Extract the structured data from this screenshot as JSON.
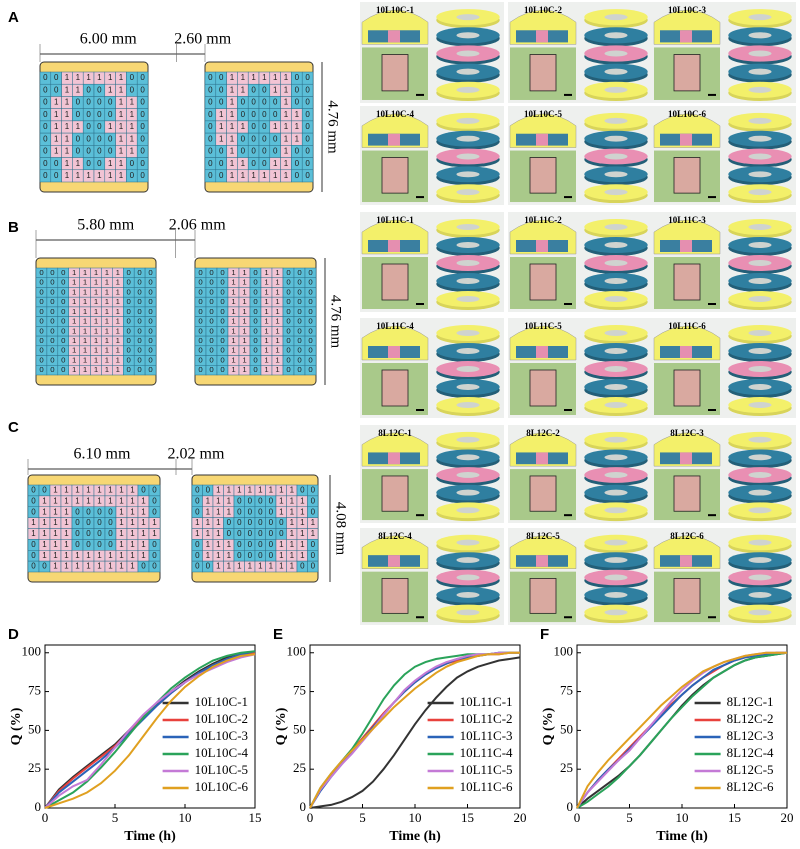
{
  "panels": [
    {
      "label": "A",
      "width": "6.00 mm",
      "gap": "2.60 mm",
      "height": "4.76 mm",
      "grids": [
        [
          "0011111100",
          "0011001100",
          "0110000110",
          "0110000110",
          "0111001110",
          "0110000110",
          "0110000110",
          "0011001100",
          "0011111100"
        ],
        [
          "0011111100",
          "0011001100",
          "0010000100",
          "0110000110",
          "0111001110",
          "0110000110",
          "0010000100",
          "0011001100",
          "0011111100"
        ]
      ],
      "tiles": [
        "10L10C-1",
        "10L10C-2",
        "10L10C-3",
        "10L10C-4",
        "10L10C-5",
        "10L10C-6"
      ]
    },
    {
      "label": "B",
      "width": "5.80 mm",
      "gap": "2.06 mm",
      "height": "4.76 mm",
      "grids": [
        [
          "00011111000",
          "00011111000",
          "00011111000",
          "00011111000",
          "00011111000",
          "00011111000",
          "00011111000",
          "00011111000",
          "00011111000",
          "00011111000",
          "00011111000"
        ],
        [
          "00011011000",
          "00011011000",
          "00011011000",
          "00011011000",
          "00011011000",
          "00011011000",
          "00011011000",
          "00011011000",
          "00011011000",
          "00011011000",
          "00011011000"
        ]
      ],
      "tiles": [
        "10L11C-1",
        "10L11C-2",
        "10L11C-3",
        "10L11C-4",
        "10L11C-5",
        "10L11C-6"
      ]
    },
    {
      "label": "C",
      "width": "6.10 mm",
      "gap": "2.02 mm",
      "height": "4.08 mm",
      "grids": [
        [
          "001111111100",
          "011111111110",
          "011100001110",
          "111100001111",
          "111100001111",
          "011100001110",
          "011111111110",
          "001111111100"
        ],
        [
          "001111111100",
          "011100001110",
          "011100001110",
          "111000000111",
          "111000000111",
          "011100001110",
          "011100001110",
          "001111111100"
        ]
      ],
      "tiles": [
        "8L12C-1",
        "8L12C-2",
        "8L12C-3",
        "8L12C-4",
        "8L12C-5",
        "8L12C-6"
      ]
    }
  ],
  "chart_data": [
    {
      "type": "line",
      "panel": "D",
      "xlabel": "Time (h)",
      "ylabel": "Q (%)",
      "xlim": [
        0,
        15
      ],
      "ylim": [
        0,
        105
      ],
      "xticks": [
        0,
        5,
        10,
        15
      ],
      "yticks": [
        0,
        25,
        50,
        75,
        100
      ],
      "x": [
        0,
        1,
        2,
        3,
        4,
        5,
        6,
        7,
        8,
        9,
        10,
        11,
        12,
        13,
        14,
        15
      ],
      "series": [
        {
          "name": "10L10C-1",
          "color": "#333333",
          "values": [
            0,
            12,
            20,
            27,
            34,
            41,
            50,
            59,
            67,
            75,
            82,
            88,
            93,
            97,
            99,
            100
          ]
        },
        {
          "name": "10L10C-2",
          "color": "#e8413c",
          "values": [
            0,
            11,
            19,
            26,
            33,
            40,
            49,
            58,
            66,
            74,
            81,
            87,
            92,
            96,
            99,
            100
          ]
        },
        {
          "name": "10L10C-3",
          "color": "#2a63b8",
          "values": [
            0,
            10,
            17,
            24,
            31,
            39,
            48,
            57,
            66,
            74,
            81,
            87,
            92,
            96,
            99,
            101
          ]
        },
        {
          "name": "10L10C-4",
          "color": "#2aa35a",
          "values": [
            0,
            5,
            10,
            17,
            26,
            36,
            47,
            58,
            68,
            77,
            84,
            90,
            95,
            98,
            100,
            101
          ]
        },
        {
          "name": "10L10C-5",
          "color": "#c47ad6",
          "values": [
            0,
            8,
            14,
            18,
            28,
            39,
            50,
            60,
            68,
            75,
            81,
            86,
            90,
            94,
            97,
            99
          ]
        },
        {
          "name": "10L10C-6",
          "color": "#e0a020",
          "values": [
            0,
            3,
            6,
            10,
            16,
            24,
            34,
            46,
            58,
            69,
            78,
            85,
            91,
            95,
            98,
            99
          ]
        }
      ]
    },
    {
      "type": "line",
      "panel": "E",
      "xlabel": "Time (h)",
      "ylabel": "Q (%)",
      "xlim": [
        0,
        20
      ],
      "ylim": [
        0,
        105
      ],
      "xticks": [
        0,
        5,
        10,
        15,
        20
      ],
      "yticks": [
        0,
        25,
        50,
        75,
        100
      ],
      "x": [
        0,
        1,
        2,
        3,
        4,
        5,
        6,
        7,
        8,
        9,
        10,
        11,
        12,
        13,
        14,
        15,
        16,
        17,
        18,
        19,
        20
      ],
      "series": [
        {
          "name": "10L11C-1",
          "color": "#333333",
          "values": [
            0,
            1,
            2,
            4,
            7,
            11,
            17,
            25,
            34,
            44,
            54,
            63,
            71,
            78,
            84,
            88,
            91,
            93,
            95,
            96,
            97
          ]
        },
        {
          "name": "10L11C-2",
          "color": "#e8413c",
          "values": [
            0,
            12,
            21,
            29,
            37,
            45,
            53,
            61,
            68,
            75,
            81,
            86,
            90,
            93,
            95,
            97,
            98,
            99,
            99,
            100,
            100
          ]
        },
        {
          "name": "10L11C-3",
          "color": "#2a63b8",
          "values": [
            0,
            11,
            20,
            28,
            36,
            44,
            52,
            60,
            68,
            75,
            81,
            86,
            90,
            93,
            96,
            97,
            98,
            99,
            100,
            100,
            100
          ]
        },
        {
          "name": "10L11C-4",
          "color": "#2aa35a",
          "values": [
            0,
            13,
            22,
            30,
            38,
            48,
            59,
            70,
            79,
            86,
            91,
            94,
            96,
            97,
            98,
            99,
            99,
            99,
            100,
            100,
            100
          ]
        },
        {
          "name": "10L11C-5",
          "color": "#c47ad6",
          "values": [
            0,
            12,
            20,
            28,
            35,
            43,
            51,
            60,
            68,
            76,
            82,
            87,
            91,
            94,
            96,
            98,
            99,
            99,
            100,
            100,
            100
          ]
        },
        {
          "name": "10L11C-6",
          "color": "#e0a020",
          "values": [
            0,
            13,
            22,
            30,
            37,
            44,
            51,
            58,
            65,
            71,
            77,
            82,
            87,
            91,
            94,
            96,
            98,
            99,
            99,
            100,
            100
          ]
        }
      ]
    },
    {
      "type": "line",
      "panel": "F",
      "xlabel": "Time (h)",
      "ylabel": "Q (%)",
      "xlim": [
        0,
        20
      ],
      "ylim": [
        0,
        105
      ],
      "xticks": [
        0,
        5,
        10,
        15,
        20
      ],
      "yticks": [
        0,
        25,
        50,
        75,
        100
      ],
      "x": [
        0,
        1,
        2,
        3,
        4,
        5,
        6,
        7,
        8,
        9,
        10,
        11,
        12,
        13,
        14,
        15,
        16,
        17,
        18,
        19,
        20
      ],
      "series": [
        {
          "name": "8L12C-1",
          "color": "#333333",
          "values": [
            0,
            6,
            11,
            16,
            21,
            27,
            34,
            42,
            50,
            58,
            66,
            73,
            79,
            84,
            88,
            92,
            95,
            97,
            98,
            99,
            100
          ]
        },
        {
          "name": "8L12C-2",
          "color": "#e8413c",
          "values": [
            0,
            10,
            18,
            25,
            32,
            39,
            46,
            53,
            60,
            67,
            73,
            79,
            84,
            88,
            92,
            95,
            97,
            98,
            99,
            100,
            100
          ]
        },
        {
          "name": "8L12C-3",
          "color": "#2a63b8",
          "values": [
            0,
            10,
            18,
            25,
            31,
            38,
            45,
            52,
            59,
            66,
            73,
            79,
            84,
            89,
            92,
            95,
            97,
            98,
            99,
            100,
            100
          ]
        },
        {
          "name": "8L12C-4",
          "color": "#2aa35a",
          "values": [
            0,
            4,
            9,
            14,
            20,
            27,
            34,
            42,
            50,
            58,
            65,
            72,
            78,
            84,
            88,
            92,
            95,
            97,
            98,
            99,
            100
          ]
        },
        {
          "name": "8L12C-5",
          "color": "#c47ad6",
          "values": [
            0,
            10,
            17,
            24,
            31,
            37,
            45,
            53,
            61,
            69,
            76,
            82,
            87,
            91,
            94,
            96,
            98,
            99,
            100,
            100,
            100
          ]
        },
        {
          "name": "8L12C-6",
          "color": "#e0a020",
          "values": [
            0,
            14,
            23,
            31,
            38,
            45,
            52,
            59,
            66,
            72,
            78,
            83,
            88,
            91,
            94,
            96,
            98,
            99,
            100,
            100,
            100
          ]
        }
      ]
    }
  ]
}
